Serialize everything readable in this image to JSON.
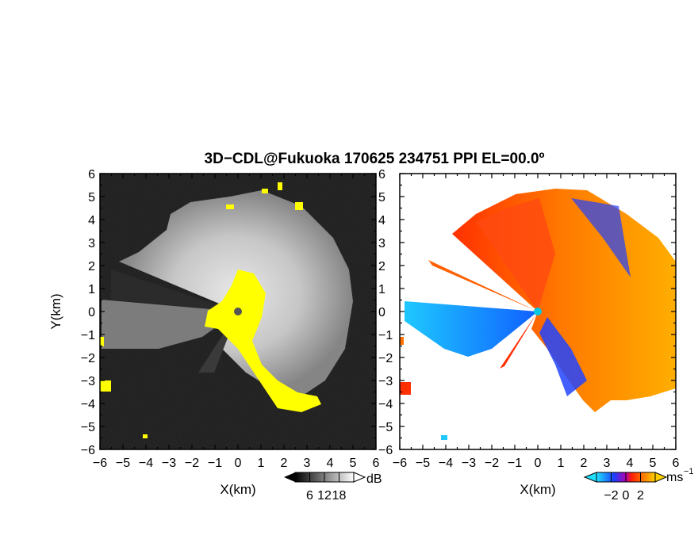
{
  "figure": {
    "title": "3D−CDL@Fukuoka 170625 234751 PPI EL=00.0º"
  },
  "colors": {
    "background": "#ffffff",
    "echo_yellow": "#ffff00",
    "center_marker_left": "#555555",
    "center_marker_right": "#00c8e0"
  },
  "chart_data": [
    {
      "type": "heatmap",
      "name": "",
      "xlabel": "X(km)",
      "ylabel": "Y(km)",
      "xlim": [
        -6,
        6
      ],
      "ylim": [
        -6,
        6
      ],
      "xticks": [
        "−6",
        "−5",
        "−4",
        "−3",
        "−2",
        "−1",
        "0",
        "1",
        "2",
        "3",
        "4",
        "5",
        "6"
      ],
      "yticks": [
        "6",
        "5",
        "4",
        "3",
        "2",
        "1",
        "0",
        "−1",
        "−2",
        "−3",
        "−4",
        "−5",
        "−6"
      ],
      "colorbar": {
        "label": "dB",
        "ticks": [
          "6",
          "12",
          "18"
        ],
        "range": [
          0,
          24
        ]
      },
      "colormap": "grayscale"
    },
    {
      "type": "heatmap",
      "name": "",
      "xlabel": "X(km)",
      "ylabel": "",
      "xlim": [
        -6,
        6
      ],
      "ylim": [
        -6,
        6
      ],
      "xticks": [
        "−6",
        "−5",
        "−4",
        "−3",
        "−2",
        "−1",
        "0",
        "1",
        "2",
        "3",
        "4",
        "5",
        "6"
      ],
      "yticks": [
        "6",
        "5",
        "4",
        "3",
        "2",
        "1",
        "0",
        "−1",
        "−2",
        "−3",
        "−4",
        "−5",
        "−6"
      ],
      "colorbar": {
        "label": "ms",
        "label_sup": "−1",
        "ticks": [
          "−2",
          "0",
          "2"
        ],
        "range": [
          -4,
          4
        ]
      },
      "colormap": "diverging-blue-orange"
    }
  ]
}
